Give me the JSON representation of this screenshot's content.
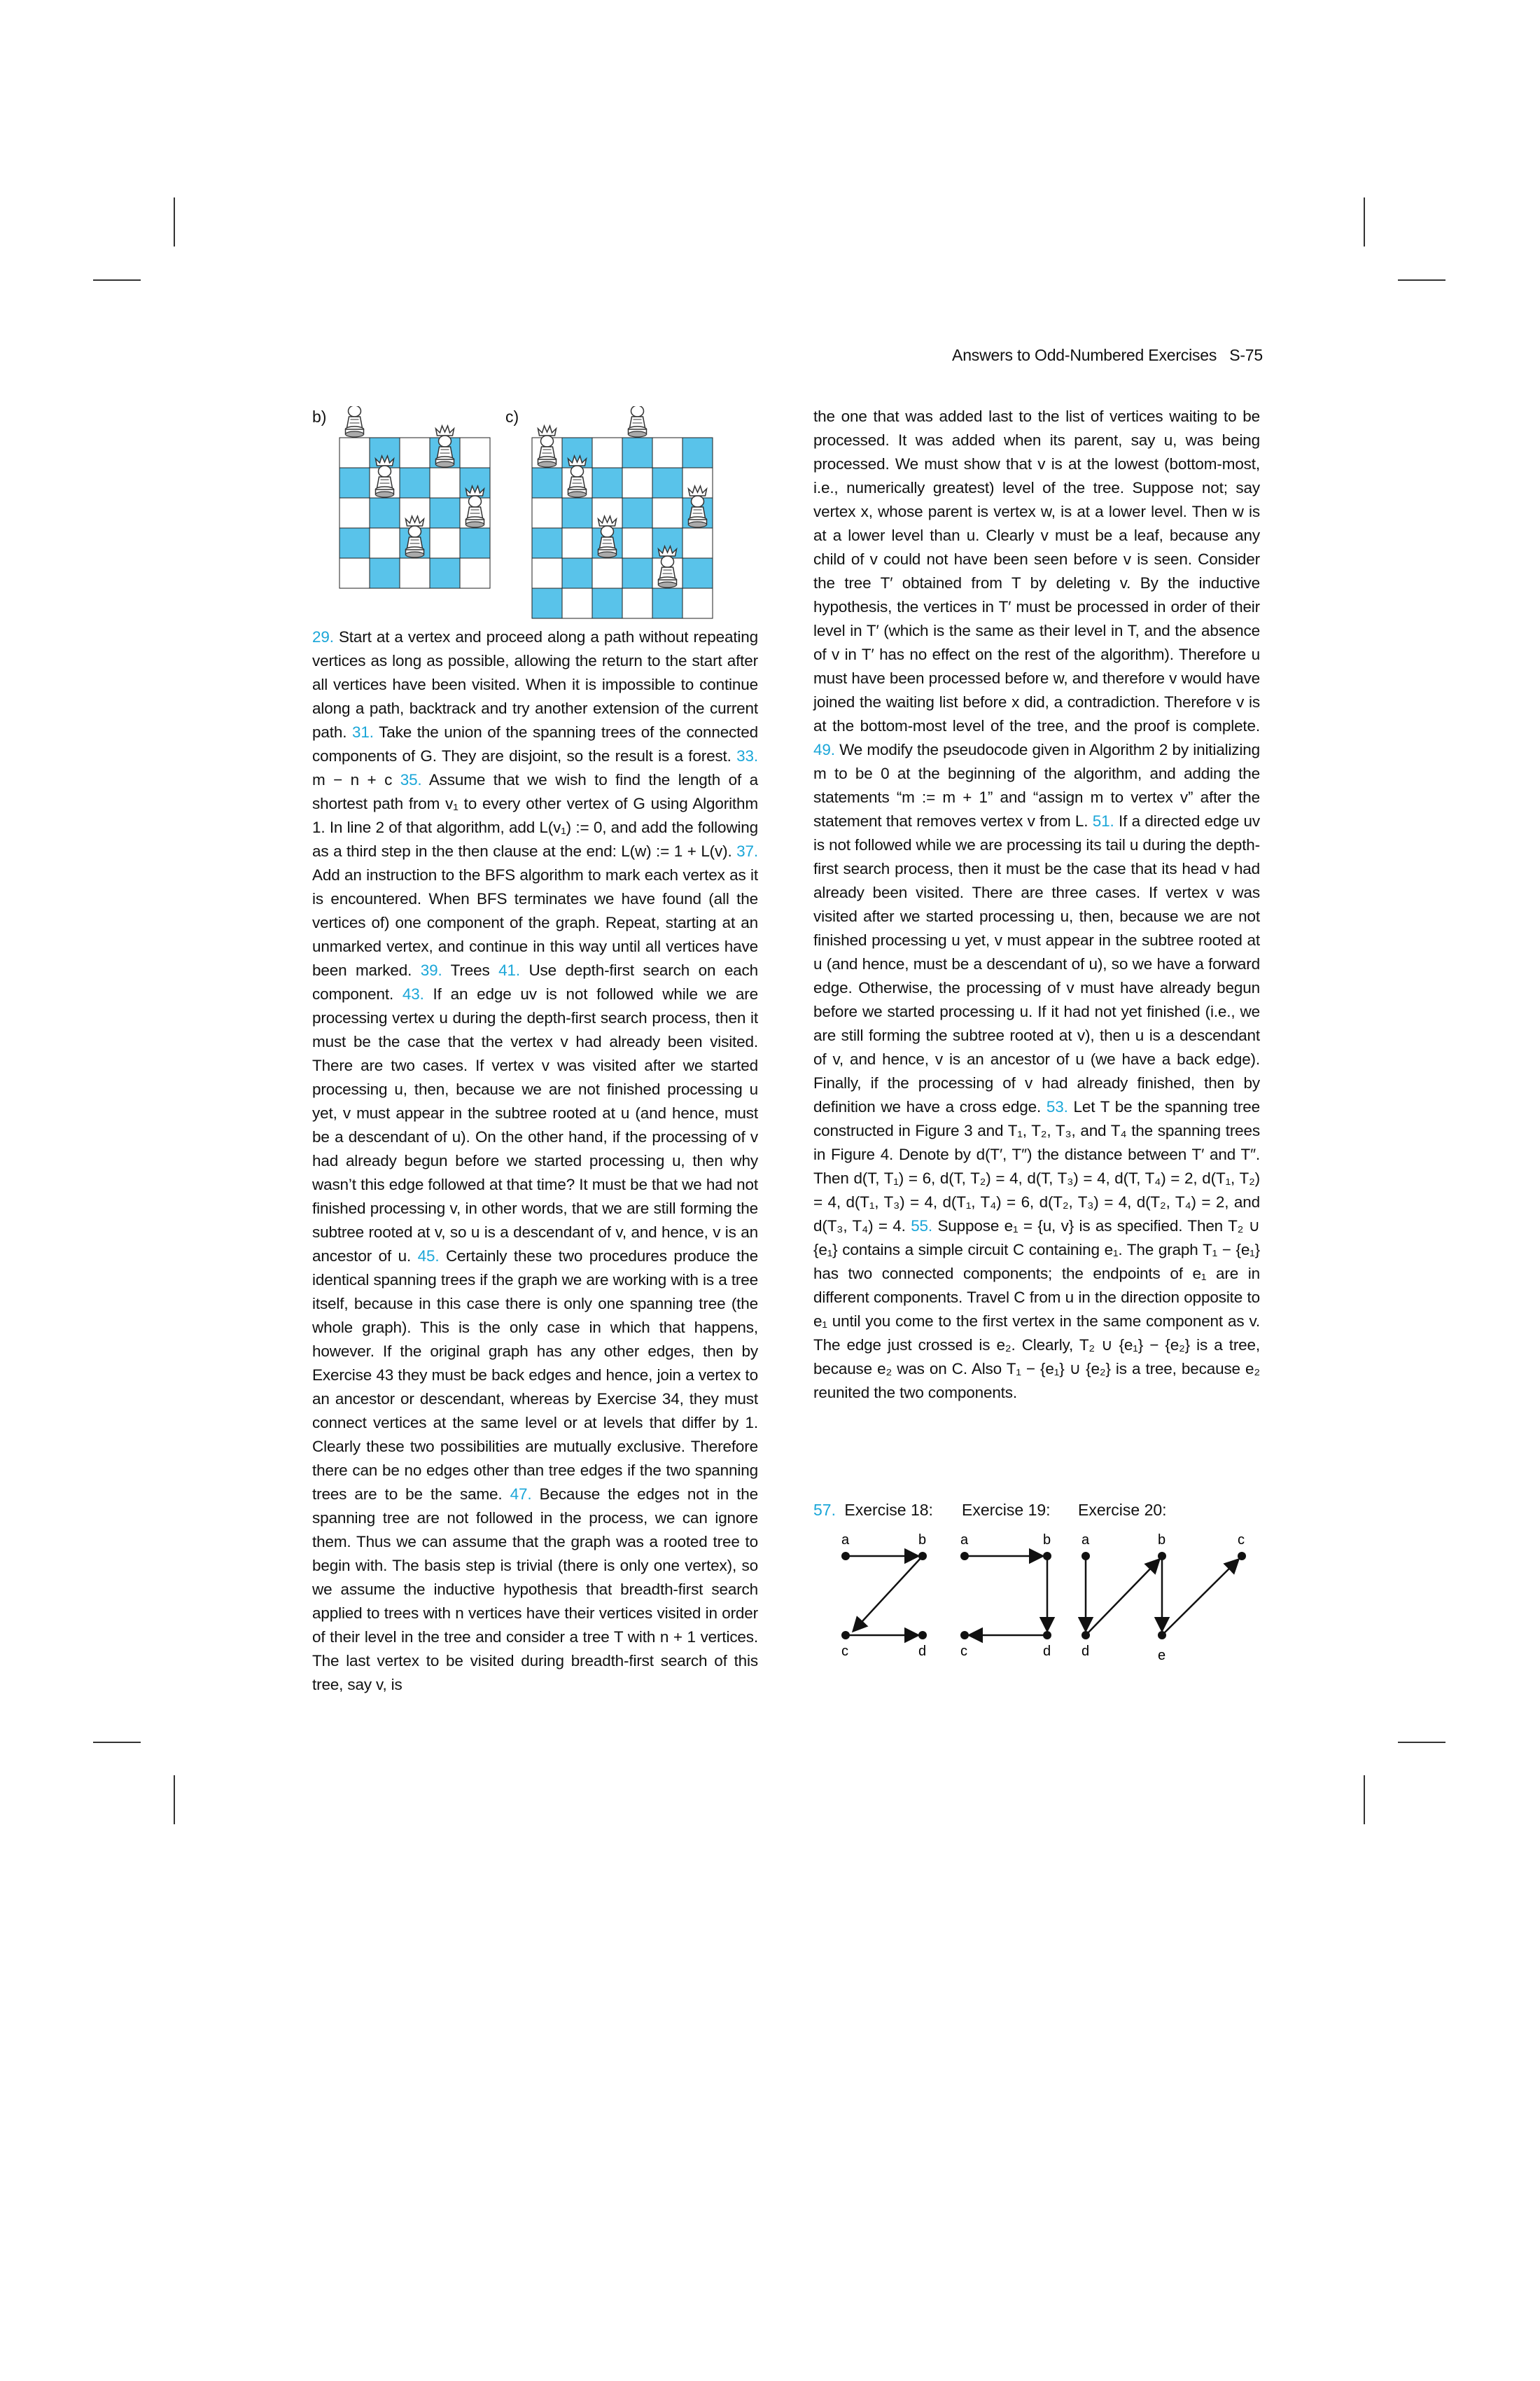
{
  "header": {
    "title": "Answers to Odd-Numbered Exercises",
    "page": "S-75"
  },
  "figures": {
    "b_label": "b)",
    "c_label": "c)"
  },
  "left_column": {
    "p": [
      {
        "n": "29.",
        "t": " Start at a vertex and proceed along a path without repeating vertices as long as possible, allowing the return to the start after all vertices have been visited. When it is impossible to continue along a path, backtrack and try another extension of the current path. "
      },
      {
        "n": "31.",
        "t": " Take the union of the spanning trees of the connected components of G. They are disjoint, so the result is a forest. "
      },
      {
        "n": "33.",
        "t": " m − n + c "
      },
      {
        "n": "35.",
        "t": " Assume that we wish to find the length of a shortest path from v₁ to every other vertex of G using Algorithm 1. In line 2 of that algorithm, add L(v₁) := 0, and add the following as a third step in the then clause at the end: L(w) := 1 + L(v). "
      },
      {
        "n": "37.",
        "t": " Add an instruction to the BFS algorithm to mark each vertex as it is encountered. When BFS terminates we have found (all the vertices of) one component of the graph. Repeat, starting at an unmarked vertex, and continue in this way until all vertices have been marked. "
      },
      {
        "n": "39.",
        "t": " Trees "
      },
      {
        "n": "41.",
        "t": " Use depth-first search on each component. "
      },
      {
        "n": "43.",
        "t": " If an edge uv is not followed while we are processing vertex u during the depth-first search process, then it must be the case that the vertex v had already been visited. There are two cases. If vertex v was visited after we started processing u, then, because we are not finished processing u yet, v must appear in the subtree rooted at u (and hence, must be a descendant of u). On the other hand, if the processing of v had already begun before we started processing u, then why wasn’t this edge followed at that time? It must be that we had not finished processing v, in other words, that we are still forming the subtree rooted at v, so u is a descendant of v, and hence, v is an ancestor of u. "
      },
      {
        "n": "45.",
        "t": " Certainly these two procedures produce the identical spanning trees if the graph we are working with is a tree itself, because in this case there is only one spanning tree (the whole graph). This is the only case in which that happens, however. If the original graph has any other edges, then by Exercise 43 they must be back edges and hence, join a vertex to an ancestor or descendant, whereas by Exercise 34, they must connect vertices at the same level or at levels that differ by 1. Clearly these two possibilities are mutually exclusive. Therefore there can be no edges other than tree edges if the two spanning trees are to be the same. "
      },
      {
        "n": "47.",
        "t": " Because the edges not in the spanning tree are not followed in the process, we can ignore them. Thus we can assume that the graph was a rooted tree to begin with. The basis step is trivial (there is only one vertex), so we assume the inductive hypothesis that breadth-first search applied to trees with n vertices have their vertices visited in order of their level in the tree and consider a tree T with n + 1 vertices. The last vertex to be visited during breadth-first search of this tree, say v, is"
      }
    ]
  },
  "right_column": {
    "p": [
      {
        "n": "",
        "t": "the one that was added last to the list of vertices waiting to be processed. It was added when its parent, say u, was being processed. We must show that v is at the lowest (bottom-most, i.e., numerically greatest) level of the tree. Suppose not; say vertex x, whose parent is vertex w, is at a lower level. Then w is at a lower level than u. Clearly v must be a leaf, because any child of v could not have been seen before v is seen. Consider the tree T′ obtained from T by deleting v. By the inductive hypothesis, the vertices in T′ must be processed in order of their level in T′ (which is the same as their level in T, and the absence of v in T′ has no effect on the rest of the algorithm). Therefore u must have been processed before w, and therefore v would have joined the waiting list before x did, a contradiction. Therefore v is at the bottom-most level of the tree, and the proof is complete. "
      },
      {
        "n": "49.",
        "t": " We modify the pseudocode given in Algorithm 2 by initializing m to be 0 at the beginning of the algorithm, and adding the statements “m := m + 1” and “assign m to vertex v” after the statement that removes vertex v from L. "
      },
      {
        "n": "51.",
        "t": " If a directed edge uv is not followed while we are processing its tail u during the depth-first search process, then it must be the case that its head v had already been visited. There are three cases. If vertex v was visited after we started processing u, then, because we are not finished processing u yet, v must appear in the subtree rooted at u (and hence, must be a descendant of u), so we have a forward edge. Otherwise, the processing of v must have already begun before we started processing u. If it had not yet finished (i.e., we are still forming the subtree rooted at v), then u is a descendant of v, and hence, v is an ancestor of u (we have a back edge). Finally, if the processing of v had already finished, then by definition we have a cross edge. "
      },
      {
        "n": "53.",
        "t": " Let T be the spanning tree constructed in Figure 3 and T₁, T₂, T₃, and T₄ the spanning trees in Figure 4. Denote by d(T′, T″) the distance between T′ and T″. Then d(T, T₁) = 6, d(T, T₂) = 4, d(T, T₃) = 4, d(T, T₄) = 2, d(T₁, T₂) = 4, d(T₁, T₃) = 4, d(T₁, T₄) = 6, d(T₂, T₃) = 4, d(T₂, T₄) = 2, and d(T₃, T₄) = 4. "
      },
      {
        "n": "55.",
        "t": " Suppose e₁ = {u, v} is as specified. Then T₂ ∪ {e₁} contains a simple circuit C containing e₁. The graph T₁ − {e₁} has two connected components; the endpoints of e₁ are in different components. Travel C from u in the direction opposite to e₁ until you come to the first vertex in the same component as v. The edge just crossed is e₂. Clearly, T₂ ∪ {e₁} − {e₂} is a tree, because e₂ was on C. Also T₁ − {e₁} ∪ {e₂} is a tree, because e₂ reunited the two components."
      }
    ]
  },
  "ex57": {
    "num": "57.",
    "labels": [
      "Exercise 18:",
      "Exercise 19:",
      "Exercise 20:"
    ],
    "g18": [
      "a",
      "b",
      "c",
      "d"
    ],
    "g19": [
      "a",
      "b",
      "c",
      "d"
    ],
    "g20": [
      "a",
      "b",
      "c",
      "d",
      "e"
    ]
  }
}
